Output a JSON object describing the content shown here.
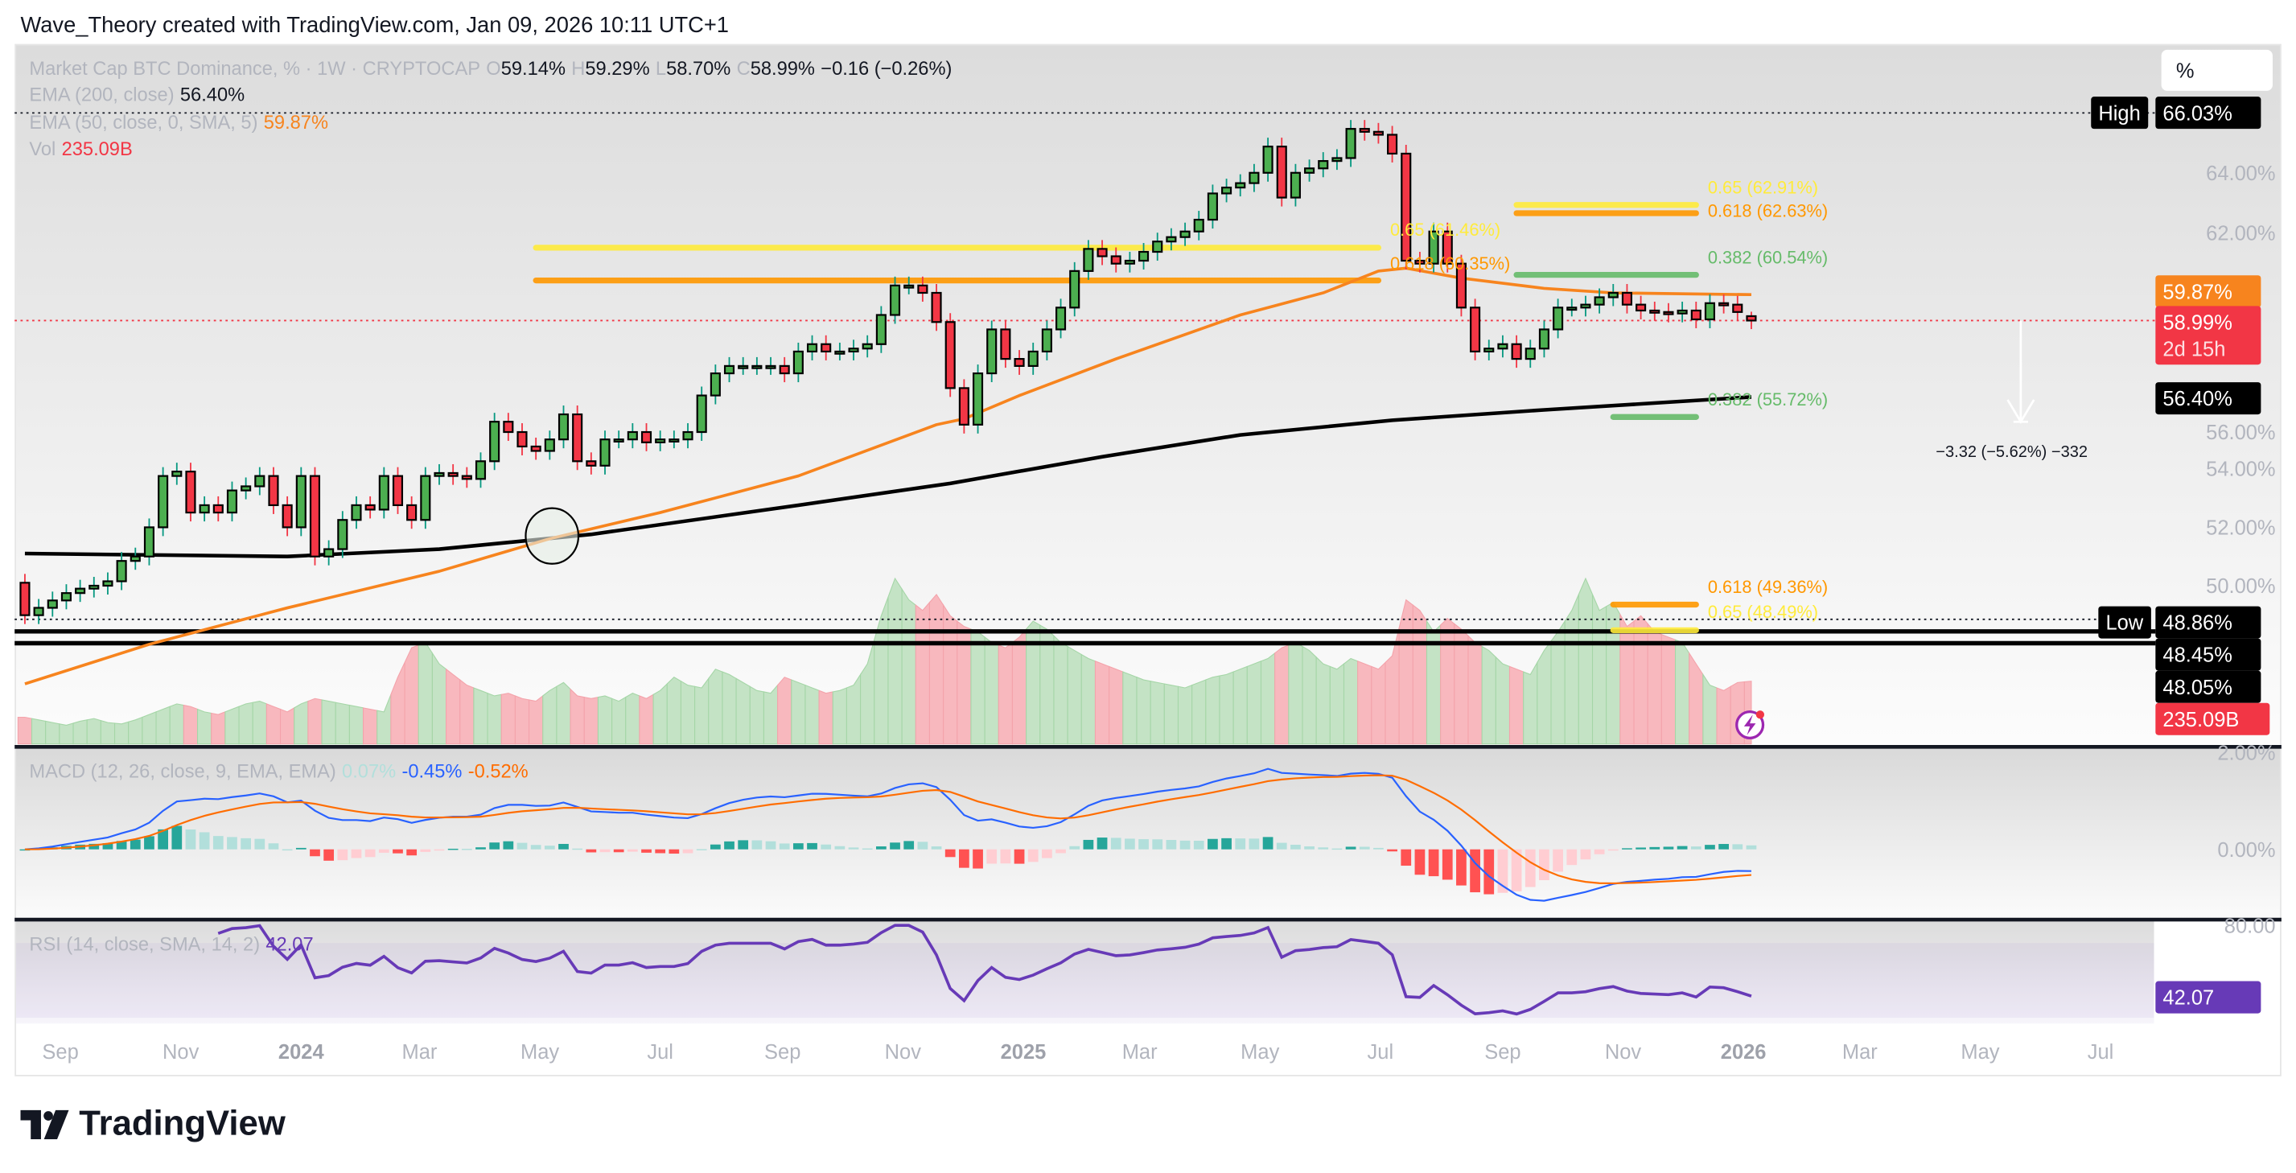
{
  "header": {
    "credit": "Wave_Theory created with TradingView.com, Jan 09, 2026 10:11 UTC+1"
  },
  "legend": {
    "symbol": "Market Cap BTC Dominance, % · 1W · CRYPTOCAP",
    "o_label": "O",
    "o": "59.14%",
    "h_label": "H",
    "h": "59.29%",
    "l_label": "L",
    "l": "58.70%",
    "c_label": "C",
    "c": "58.99%",
    "change": "−0.16 (−0.26%)",
    "ema200_label": "EMA (200, close)",
    "ema200_value": "56.40%",
    "ema50_label": "EMA (50, close, 0, SMA, 5)",
    "ema50_value": "59.87%",
    "vol_label": "Vol",
    "vol_value": "235.09B"
  },
  "scale_button": "%",
  "price_axis": {
    "ticks": [
      "64.00%",
      "62.00%",
      "56.00%",
      "54.00%",
      "52.00%",
      "50.00%"
    ],
    "macd_ticks": [
      "2.00%",
      "0.00%"
    ],
    "rsi_ticks": [
      "80.00"
    ],
    "high_label": "High",
    "high_value": "66.03%",
    "ema50_tag": "59.87%",
    "last_tag": "58.99%",
    "countdown": "2d 15h",
    "ema200_tag": "56.40%",
    "low_label": "Low",
    "low_value": "48.86%",
    "line1_tag": "48.45%",
    "line2_tag": "48.05%",
    "vol_tag": "235.09B",
    "rsi_tag": "42.07"
  },
  "time_axis": [
    {
      "label": "Sep",
      "date": "2023-09-01",
      "year": false
    },
    {
      "label": "Nov",
      "date": "2023-11-01",
      "year": false
    },
    {
      "label": "2024",
      "date": "2024-01-01",
      "year": true
    },
    {
      "label": "Mar",
      "date": "2024-03-01",
      "year": false
    },
    {
      "label": "May",
      "date": "2024-05-01",
      "year": false
    },
    {
      "label": "Jul",
      "date": "2024-07-01",
      "year": false
    },
    {
      "label": "Sep",
      "date": "2024-09-01",
      "year": false
    },
    {
      "label": "Nov",
      "date": "2024-11-01",
      "year": false
    },
    {
      "label": "2025",
      "date": "2025-01-01",
      "year": true
    },
    {
      "label": "Mar",
      "date": "2025-03-01",
      "year": false
    },
    {
      "label": "May",
      "date": "2025-05-01",
      "year": false
    },
    {
      "label": "Jul",
      "date": "2025-07-01",
      "year": false
    },
    {
      "label": "Sep",
      "date": "2025-09-01",
      "year": false
    },
    {
      "label": "Nov",
      "date": "2025-11-01",
      "year": false
    },
    {
      "label": "2026",
      "date": "2026-01-01",
      "year": true
    },
    {
      "label": "Mar",
      "date": "2026-03-01",
      "year": false
    },
    {
      "label": "May",
      "date": "2026-05-01",
      "year": false
    },
    {
      "label": "Jul",
      "date": "2026-07-01",
      "year": false
    }
  ],
  "macd": {
    "label": "MACD (12, 26, close, 9, EMA, EMA)",
    "hist": "0.07%",
    "macd": "-0.45%",
    "signal": "-0.52%"
  },
  "rsi": {
    "label": "RSI (14, close, SMA, 14, 2)",
    "value": "42.07"
  },
  "measure": {
    "text": "−3.32 (−5.62%) −332"
  },
  "fib_levels": [
    {
      "label": "0.65 (61.46%)",
      "price": 61.46,
      "color": "#ffeb3b",
      "from": "2024-04-29",
      "to": "2025-06-30"
    },
    {
      "label": "0.618 (60.35%)",
      "price": 60.35,
      "color": "#ff9800",
      "from": "2024-04-29",
      "to": "2025-06-30"
    },
    {
      "label": "0.65 (62.91%)",
      "price": 62.91,
      "color": "#ffeb3b",
      "from": "2025-09-08",
      "to": "2025-12-08"
    },
    {
      "label": "0.618 (62.63%)",
      "price": 62.63,
      "color": "#ff9800",
      "from": "2025-09-08",
      "to": "2025-12-08"
    },
    {
      "label": "0.382 (60.54%)",
      "price": 60.54,
      "color": "#66bb6a",
      "from": "2025-09-08",
      "to": "2025-12-08"
    },
    {
      "label": "0.382 (55.72%)",
      "price": 55.72,
      "color": "#66bb6a",
      "from": "2025-10-27",
      "to": "2025-12-08"
    },
    {
      "label": "0.618 (49.36%)",
      "price": 49.36,
      "color": "#ff9800",
      "from": "2025-10-27",
      "to": "2025-12-08"
    },
    {
      "label": "0.65 (48.49%)",
      "price": 48.49,
      "color": "#ffeb3b",
      "from": "2025-10-27",
      "to": "2025-12-08"
    }
  ],
  "horizontal_lines": {
    "high": 66.03,
    "last": 58.99,
    "low": 48.86,
    "support1": 48.45,
    "support2": 48.05
  },
  "colors": {
    "up": "#4caf50",
    "down": "#f23645",
    "up_wick": "#089981",
    "ema50": "#f7841e",
    "ema200": "#000000",
    "macd": "#2962ff",
    "signal": "#ff6d00",
    "rsi": "#673ab7",
    "vol_up": "#c4e3c5",
    "vol_down": "#f8b8be"
  },
  "chart_data": {
    "type": "candlestick",
    "interval": "1W",
    "start_date": "2023-08-14",
    "first_open": 50.1,
    "last_candle": {
      "open": 59.14,
      "high": 59.29,
      "low": 58.7,
      "close": 58.99
    },
    "closes": [
      49.0,
      49.25,
      49.5,
      49.75,
      49.9,
      50.0,
      50.15,
      50.84,
      50.99,
      51.98,
      53.72,
      53.87,
      52.48,
      52.73,
      52.48,
      53.23,
      53.37,
      53.72,
      52.73,
      51.98,
      53.72,
      50.99,
      51.24,
      52.23,
      52.73,
      52.58,
      53.72,
      52.73,
      52.23,
      53.72,
      53.82,
      53.72,
      53.62,
      54.22,
      55.56,
      55.21,
      54.72,
      54.57,
      54.96,
      55.81,
      54.22,
      54.07,
      54.96,
      54.96,
      55.21,
      54.86,
      54.96,
      54.96,
      55.21,
      56.45,
      57.2,
      57.45,
      57.45,
      57.45,
      57.45,
      57.2,
      57.94,
      58.19,
      57.94,
      57.94,
      58.04,
      58.19,
      59.18,
      60.18,
      60.18,
      59.93,
      58.94,
      56.7,
      55.46,
      57.2,
      58.69,
      57.69,
      57.45,
      57.94,
      58.69,
      59.43,
      60.67,
      61.42,
      61.17,
      60.92,
      61.02,
      61.32,
      61.67,
      61.82,
      62.01,
      62.41,
      63.3,
      63.5,
      63.65,
      64.0,
      64.89,
      63.16,
      64.0,
      64.15,
      64.4,
      64.5,
      65.49,
      65.39,
      65.29,
      64.65,
      61.02,
      60.92,
      62.01,
      60.92,
      59.43,
      57.94,
      58.04,
      58.19,
      57.69,
      58.04,
      58.69,
      59.43,
      59.43,
      59.53,
      59.78,
      59.93,
      59.53,
      59.33,
      59.28,
      59.23,
      59.33,
      59.03,
      59.58,
      59.53,
      59.28,
      58.99
    ],
    "volume_billions": [
      100,
      90,
      80,
      70,
      85,
      95,
      80,
      75,
      90,
      110,
      130,
      150,
      140,
      120,
      110,
      130,
      150,
      160,
      140,
      120,
      150,
      170,
      160,
      150,
      140,
      130,
      120,
      250,
      360,
      380,
      300,
      260,
      220,
      200,
      180,
      190,
      170,
      160,
      200,
      230,
      180,
      170,
      180,
      160,
      190,
      170,
      200,
      250,
      220,
      210,
      280,
      260,
      230,
      200,
      190,
      250,
      230,
      210,
      190,
      200,
      220,
      300,
      480,
      620,
      540,
      500,
      560,
      480,
      440,
      420,
      380,
      360,
      400,
      460,
      430,
      380,
      350,
      320,
      300,
      280,
      260,
      240,
      230,
      220,
      210,
      230,
      250,
      260,
      280,
      300,
      320,
      360,
      380,
      350,
      300,
      280,
      320,
      300,
      280,
      330,
      540,
      500,
      420,
      470,
      430,
      380,
      350,
      300,
      280,
      260,
      350,
      420,
      500,
      620,
      500,
      530,
      440,
      480,
      420,
      400,
      380,
      300,
      220,
      200,
      230,
      235.09
    ],
    "ema50": [
      [
        "2023-08-14",
        46.67
      ],
      [
        "2023-10-16",
        48.01
      ],
      [
        "2023-12-25",
        49.25
      ],
      [
        "2024-03-11",
        50.49
      ],
      [
        "2024-05-06",
        51.59
      ],
      [
        "2024-07-01",
        52.48
      ],
      [
        "2024-09-09",
        53.72
      ],
      [
        "2024-11-18",
        55.46
      ],
      [
        "2024-12-02",
        55.66
      ],
      [
        "2024-12-30",
        56.45
      ],
      [
        "2025-02-17",
        57.69
      ],
      [
        "2025-04-21",
        59.18
      ],
      [
        "2025-06-02",
        59.93
      ],
      [
        "2025-06-30",
        60.67
      ],
      [
        "2025-07-14",
        60.77
      ],
      [
        "2025-08-11",
        60.43
      ],
      [
        "2025-09-22",
        60.08
      ],
      [
        "2025-10-27",
        59.93
      ],
      [
        "2026-01-05",
        59.87
      ]
    ],
    "ema200": [
      [
        "2023-08-14",
        51.09
      ],
      [
        "2023-12-25",
        50.99
      ],
      [
        "2024-03-11",
        51.24
      ],
      [
        "2024-05-27",
        51.74
      ],
      [
        "2024-09-09",
        52.73
      ],
      [
        "2024-11-25",
        53.47
      ],
      [
        "2025-02-10",
        54.37
      ],
      [
        "2025-04-21",
        55.11
      ],
      [
        "2025-07-07",
        55.61
      ],
      [
        "2025-09-22",
        55.96
      ],
      [
        "2026-01-05",
        56.4
      ]
    ],
    "y_range": [
      46.0,
      67.0
    ],
    "grid": false
  }
}
